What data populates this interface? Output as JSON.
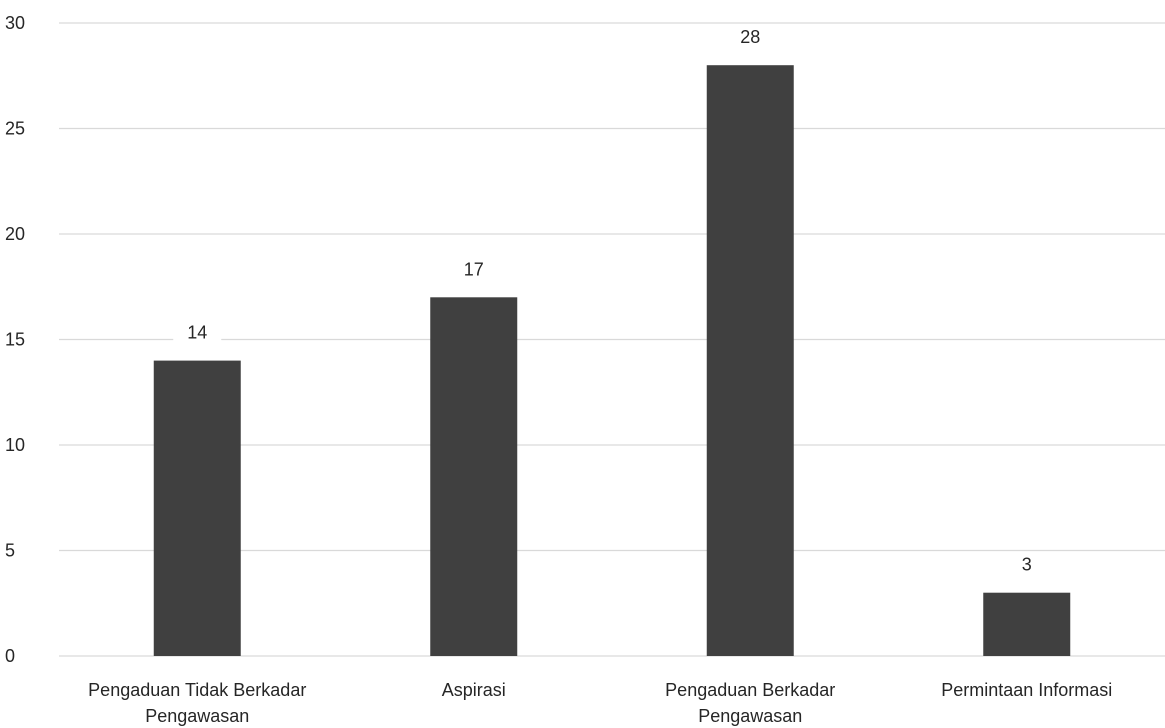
{
  "chart_data": {
    "type": "bar",
    "categories": [
      [
        "Pengaduan Tidak Berkadar",
        "Pengawasan"
      ],
      [
        "Aspirasi"
      ],
      [
        "Pengaduan Berkadar",
        "Pengawasan"
      ],
      [
        "Permintaan Informasi"
      ]
    ],
    "values": [
      14,
      17,
      28,
      3
    ],
    "data_labels": [
      "14",
      "17",
      "28",
      "3"
    ],
    "y_ticks": [
      "0",
      "5",
      "10",
      "15",
      "20",
      "25",
      "30"
    ],
    "ylim": [
      0,
      30
    ],
    "grid": true,
    "bar_color": "#404040",
    "grid_color": "#d9d9d9"
  }
}
